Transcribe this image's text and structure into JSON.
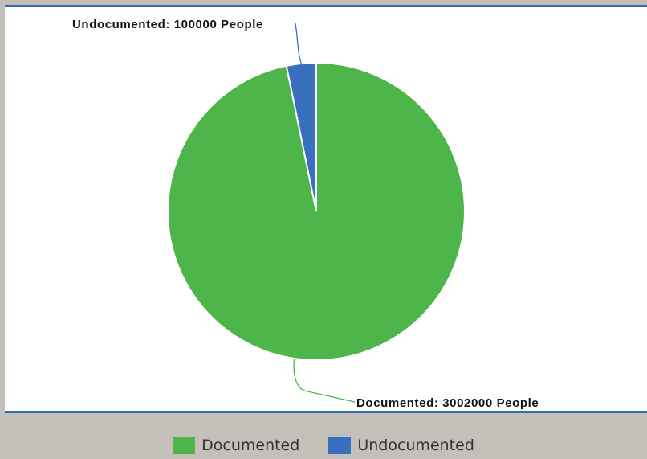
{
  "chart_data": {
    "type": "pie",
    "slices": [
      {
        "name": "Documented",
        "value": 3002000,
        "color": "#4db54a",
        "label": "Documented: 3002000 People"
      },
      {
        "name": "Undocumented",
        "value": 100000,
        "color": "#3a6fc0",
        "label": "Undocumented: 100000 People"
      }
    ],
    "legend": {
      "position": "bottom"
    }
  }
}
